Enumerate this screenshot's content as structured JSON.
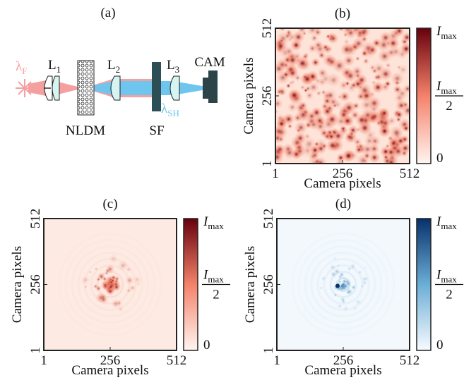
{
  "diagram": {
    "label": "(a)",
    "source": {
      "symbol": "λ",
      "subscript": "F"
    },
    "lens1": {
      "symbol": "L",
      "subscript": "1"
    },
    "lens2": {
      "symbol": "L",
      "subscript": "2"
    },
    "lens3": {
      "symbol": "L",
      "subscript": "3"
    },
    "medium": "NLDM",
    "filter": "SF",
    "camera": "CAM",
    "output": {
      "symbol": "λ",
      "subscript": "SH"
    }
  },
  "images": [
    {
      "label": "(b)",
      "xlabel": "Camera pixels",
      "ylabel": "Camera pixels",
      "xticks": [
        1,
        256,
        512
      ],
      "yticks": [
        1,
        256,
        512
      ],
      "colormap": [
        "#fff5f0",
        "#f4826a",
        "#67000d"
      ],
      "colorbar": {
        "max": {
          "symbol": "I",
          "subscript": "max"
        },
        "half": {
          "symbol": "I",
          "subscript": "max",
          "denominator": "2"
        },
        "min": "0"
      }
    },
    {
      "label": "(c)",
      "xlabel": "Camera pixels",
      "ylabel": "Camera pixels",
      "xticks": [
        1,
        256,
        512
      ],
      "yticks": [
        1,
        256,
        512
      ],
      "colormap": [
        "#fff5f0",
        "#f4826a",
        "#67000d"
      ],
      "colorbar": {
        "max": {
          "symbol": "I",
          "subscript": "max"
        },
        "half": {
          "symbol": "I",
          "subscript": "max",
          "denominator": "2"
        },
        "min": "0"
      }
    },
    {
      "label": "(d)",
      "xlabel": "Camera pixels",
      "ylabel": "Camera pixels",
      "xticks": [
        1,
        256,
        512
      ],
      "yticks": [
        1,
        256,
        512
      ],
      "colormap": [
        "#f7fbff",
        "#6baed6",
        "#08306b"
      ],
      "colorbar": {
        "max": {
          "symbol": "I",
          "subscript": "max"
        },
        "half": {
          "symbol": "I",
          "subscript": "max",
          "denominator": "2"
        },
        "min": "0"
      }
    }
  ]
}
